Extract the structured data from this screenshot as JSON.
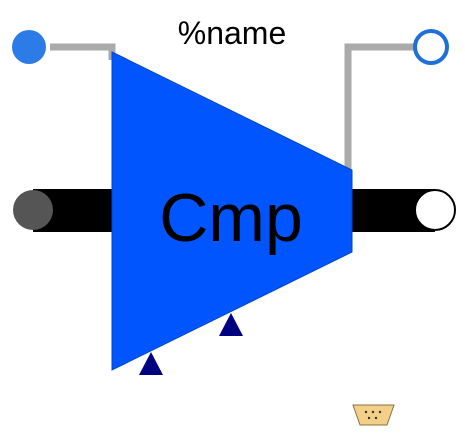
{
  "diagram": {
    "name_label": "%name",
    "component_label": "Cmp"
  },
  "colors": {
    "body": "#0055ff",
    "port_left_fill": "#2c7be6",
    "port_right_fill": "#ffffff",
    "port_right_stroke": "#1f6fd8",
    "wire": "#aaaaaa",
    "shaft": "#000000",
    "shaft_left_cap": "#555555",
    "shaft_right_cap": "#ffffff",
    "pin": "#000080",
    "connector": "#f3cf8a"
  },
  "icons": {
    "left_port": "filled-circle",
    "right_port": "hollow-circle",
    "pins": "triangle-up",
    "connector": "d-sub-connector"
  }
}
